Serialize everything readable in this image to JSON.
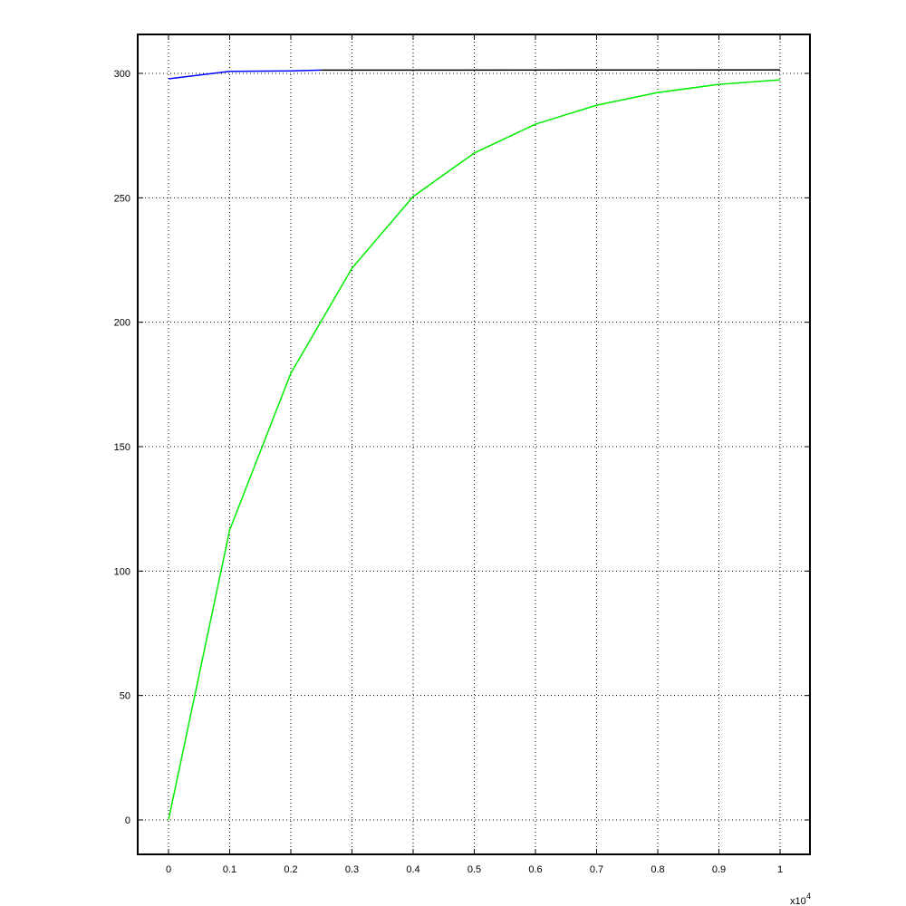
{
  "chart_data": {
    "type": "line",
    "title": "",
    "xlabel": "",
    "ylabel": "",
    "x_exponent_label": "x10",
    "x_exponent_power": "4",
    "xlim": [
      -0.05,
      1.05
    ],
    "ylim": [
      -14,
      316
    ],
    "grid": true,
    "xticks": [
      0,
      0.1,
      0.2,
      0.3,
      0.4,
      0.5,
      0.6,
      0.7,
      0.8,
      0.9,
      1
    ],
    "xtick_labels": [
      "0",
      "0.1",
      "0.2",
      "0.3",
      "0.4",
      "0.5",
      "0.6",
      "0.7",
      "0.8",
      "0.9",
      "1"
    ],
    "yticks": [
      0,
      50,
      100,
      150,
      200,
      250,
      300
    ],
    "ytick_labels": [
      "0",
      "50",
      "100",
      "150",
      "200",
      "250",
      "300"
    ],
    "series": [
      {
        "color": "#00ee00",
        "x": [
          0,
          0.1,
          0.2,
          0.3,
          0.4,
          0.5,
          0.6,
          0.7,
          0.8,
          0.9,
          1
        ],
        "y": [
          0,
          116.5,
          179.5,
          221.7,
          250.5,
          268,
          279.6,
          287.2,
          292.3,
          295.6,
          297.4
        ]
      },
      {
        "color": "#0000ff",
        "x": [
          0,
          0.1,
          0.2,
          0.25
        ],
        "y": [
          297.8,
          300.8,
          301.0,
          301.3
        ]
      },
      {
        "color": "#000000",
        "x": [
          0.25,
          1
        ],
        "y": [
          301.3,
          301.4
        ]
      }
    ]
  }
}
